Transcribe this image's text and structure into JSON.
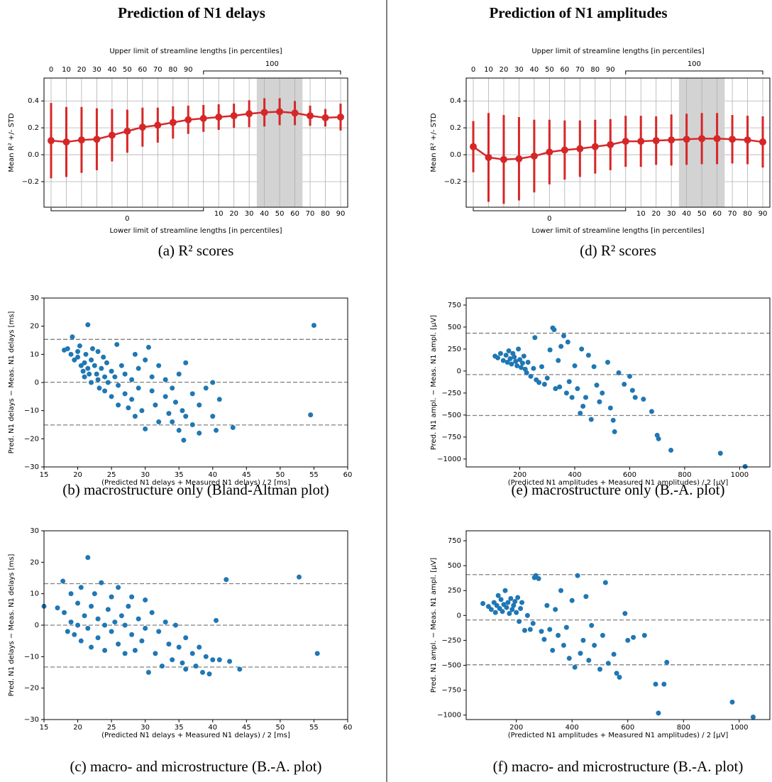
{
  "column_titles": [
    "Prediction of N1 delays",
    "Prediction of N1 amplitudes"
  ],
  "chart_data": [
    {
      "type": "errorbar",
      "caption": "(a) R² scores",
      "ylabel": "Mean R² +/- STD",
      "xlabel_top": "Upper limit of streamline lengths [in percentiles]",
      "xlabel_bottom": "Lower limit of streamline lengths [in percentiles]",
      "upper": [
        0,
        10,
        20,
        30,
        40,
        50,
        60,
        70,
        80,
        90,
        100,
        100,
        100,
        100,
        100,
        100,
        100,
        100,
        100,
        100
      ],
      "lower": [
        0,
        0,
        0,
        0,
        0,
        0,
        0,
        0,
        0,
        0,
        0,
        10,
        20,
        30,
        40,
        50,
        60,
        70,
        80,
        90
      ],
      "values": [
        0.105,
        0.095,
        0.11,
        0.115,
        0.145,
        0.175,
        0.205,
        0.22,
        0.24,
        0.26,
        0.27,
        0.28,
        0.29,
        0.305,
        0.315,
        0.32,
        0.31,
        0.29,
        0.275,
        0.28
      ],
      "errors": [
        0.28,
        0.26,
        0.245,
        0.23,
        0.195,
        0.16,
        0.145,
        0.13,
        0.12,
        0.105,
        0.1,
        0.095,
        0.09,
        0.1,
        0.105,
        0.1,
        0.09,
        0.075,
        0.065,
        0.1
      ],
      "shaded": [
        14,
        15,
        16
      ],
      "color": "#d62728",
      "grid": true,
      "ylim": [
        -0.39,
        0.57
      ],
      "yticks": [
        {
          "value": -0.2,
          "label": "−0.2"
        },
        {
          "value": 0,
          "label": "0.0"
        },
        0.2,
        0.4
      ]
    },
    {
      "type": "scatter",
      "caption": "(b) macrostructure only (Bland-Altman plot)",
      "ylabel": "Pred. N1 delays − Meas. N1 delays [ms]",
      "xlabel": "(Predicted N1 delays + Measured N1 delays) / 2 [ms]",
      "x": [
        18,
        18.5,
        19,
        19.2,
        19.5,
        20,
        20,
        20.3,
        20.5,
        20.8,
        21,
        21,
        21.2,
        21.5,
        21.5,
        21.7,
        22,
        22,
        22.2,
        22.5,
        22.8,
        23,
        23,
        23.2,
        23.5,
        23.8,
        24,
        24,
        24.3,
        24.5,
        25,
        25,
        25.5,
        25.8,
        26,
        26,
        26.5,
        27,
        27,
        27.5,
        28,
        28,
        28.5,
        28.5,
        29,
        29,
        29.5,
        30,
        30,
        30.5,
        31,
        31,
        31.5,
        32,
        32,
        33,
        33,
        33.5,
        34,
        34,
        34.5,
        35,
        35,
        35.5,
        35.7,
        36,
        36,
        37,
        37,
        38,
        38,
        39,
        40,
        40,
        40.5,
        41,
        43,
        54.5,
        55
      ],
      "values": [
        11.5,
        12,
        10,
        16.2,
        8,
        9,
        11,
        13,
        6,
        4,
        7,
        2,
        10,
        20.5,
        5,
        3,
        8,
        0,
        12,
        6,
        3,
        11,
        1,
        -2,
        5,
        9,
        2,
        -3,
        7,
        0,
        4,
        -5,
        2,
        13.5,
        -1,
        -8,
        6,
        3,
        -4,
        -9,
        1,
        -6,
        10,
        -12,
        -2,
        5,
        -10,
        -16.5,
        8,
        12.5,
        -3,
        2,
        -8,
        -14,
        6,
        -5,
        1,
        -11,
        -2,
        -14,
        -7,
        -17,
        3,
        -10,
        -20.5,
        -12,
        7,
        -4,
        -15,
        -8,
        -18,
        -2,
        0,
        -12,
        -17,
        -6,
        -16,
        -11.5,
        20.3
      ],
      "hlines": [
        15.3,
        0.1,
        -15.1
      ],
      "color": "#1f77b4",
      "xlim": [
        15,
        60
      ],
      "xticks": [
        15,
        20,
        25,
        30,
        35,
        40,
        45,
        50,
        55,
        60
      ],
      "ylim": [
        -30,
        30
      ],
      "yticks": [
        {
          "value": -30,
          "label": "−30"
        },
        {
          "value": -20,
          "label": "−20"
        },
        {
          "value": -10,
          "label": "−10"
        },
        0,
        10,
        20,
        30
      ]
    },
    {
      "type": "scatter",
      "caption": "(c) macro- and microstructure (B.-A. plot)",
      "ylabel": "Pred. N1 delays − Meas. N1 delays [ms]",
      "xlabel": "(Predicted N1 delays + Measured N1 delays) / 2 [ms]",
      "x": [
        15,
        17,
        17.8,
        18,
        18.5,
        19,
        19,
        19.5,
        20,
        20,
        20.5,
        20.5,
        21,
        21.5,
        21.5,
        22,
        22,
        22.5,
        23,
        23,
        23.5,
        24,
        24,
        24.5,
        25,
        25,
        25.5,
        26,
        26,
        26.5,
        27,
        27,
        27.5,
        28,
        28,
        28.5,
        29,
        29.5,
        30,
        30,
        30.5,
        31,
        31.5,
        32,
        32.5,
        33,
        33.5,
        34,
        34.5,
        35,
        35.5,
        36,
        36,
        37,
        37.5,
        38,
        38.5,
        39,
        39.5,
        40,
        40.5,
        41,
        42,
        42.5,
        44,
        52.8,
        55.5
      ],
      "values": [
        6,
        5.5,
        14,
        4,
        -2,
        10,
        1,
        -3,
        7,
        0,
        12,
        -5,
        3,
        21.5,
        -1,
        6,
        -7,
        10,
        2,
        -4,
        13.5,
        0,
        -8,
        5,
        -2,
        9,
        1,
        -6,
        12,
        3,
        -9,
        0,
        6,
        -3,
        9,
        -8,
        2,
        -5,
        8,
        -1,
        -15,
        4,
        -9,
        -2,
        -13,
        1,
        -6,
        -11,
        0,
        -7,
        -12,
        -4,
        -14,
        -9,
        -13,
        -7,
        -15,
        -10,
        -15.5,
        -11,
        1.5,
        -11,
        14.5,
        -11.5,
        -14,
        15.3,
        -9
      ],
      "hlines": [
        13.2,
        0,
        -13.3
      ],
      "color": "#1f77b4",
      "xlim": [
        15,
        60
      ],
      "xticks": [
        15,
        20,
        25,
        30,
        35,
        40,
        45,
        50,
        55,
        60
      ],
      "ylim": [
        -30,
        30
      ],
      "yticks": [
        {
          "value": -30,
          "label": "−30"
        },
        {
          "value": -20,
          "label": "−20"
        },
        {
          "value": -10,
          "label": "−10"
        },
        0,
        10,
        20,
        30
      ]
    },
    {
      "type": "errorbar",
      "caption": "(d) R² scores",
      "ylabel": "Mean R² +/- STD",
      "xlabel_top": "Upper limit of streamline lengths [in percentiles]",
      "xlabel_bottom": "Lower limit of streamline lengths [in percentiles]",
      "upper": [
        0,
        10,
        20,
        30,
        40,
        50,
        60,
        70,
        80,
        90,
        100,
        100,
        100,
        100,
        100,
        100,
        100,
        100,
        100,
        100
      ],
      "lower": [
        0,
        0,
        0,
        0,
        0,
        0,
        0,
        0,
        0,
        0,
        0,
        10,
        20,
        30,
        40,
        50,
        60,
        70,
        80,
        90
      ],
      "values": [
        0.06,
        -0.02,
        -0.035,
        -0.03,
        -0.01,
        0.02,
        0.035,
        0.045,
        0.06,
        0.075,
        0.1,
        0.1,
        0.105,
        0.11,
        0.115,
        0.12,
        0.12,
        0.115,
        0.11,
        0.095
      ],
      "errors": [
        0.19,
        0.33,
        0.33,
        0.31,
        0.27,
        0.24,
        0.22,
        0.21,
        0.2,
        0.19,
        0.19,
        0.19,
        0.18,
        0.19,
        0.19,
        0.19,
        0.19,
        0.18,
        0.18,
        0.19
      ],
      "shaded": [
        14,
        15,
        16
      ],
      "color": "#d62728",
      "grid": true,
      "ylim": [
        -0.39,
        0.57
      ],
      "yticks": [
        {
          "value": -0.2,
          "label": "−0.2"
        },
        {
          "value": 0,
          "label": "0.0"
        },
        0.2,
        0.4
      ]
    },
    {
      "type": "scatter",
      "caption": "(e) macrostructure only (B.-A. plot)",
      "ylabel": "Pred. N1 ampl. − Meas. N1 ampl. [μV]",
      "xlabel": "(Predicted N1 amplitudes + Measured N1 amplitudes) / 2 [μV]",
      "x": [
        110,
        120,
        130,
        140,
        150,
        155,
        160,
        165,
        170,
        175,
        180,
        185,
        190,
        195,
        200,
        205,
        210,
        215,
        220,
        225,
        230,
        240,
        250,
        255,
        260,
        270,
        280,
        290,
        300,
        310,
        320,
        325,
        330,
        340,
        345,
        350,
        360,
        370,
        375,
        380,
        390,
        400,
        410,
        420,
        425,
        430,
        440,
        450,
        460,
        470,
        480,
        490,
        500,
        520,
        530,
        540,
        545,
        560,
        580,
        600,
        610,
        620,
        650,
        680,
        700,
        705,
        750,
        930,
        1020
      ],
      "values": [
        170,
        150,
        200,
        120,
        180,
        100,
        230,
        140,
        80,
        200,
        160,
        110,
        60,
        250,
        130,
        40,
        90,
        170,
        20,
        -20,
        100,
        -60,
        30,
        380,
        -100,
        -130,
        50,
        -150,
        -80,
        240,
        490,
        470,
        -200,
        120,
        -180,
        280,
        400,
        -250,
        330,
        -120,
        -300,
        60,
        -200,
        -480,
        250,
        -400,
        -300,
        180,
        -550,
        50,
        -160,
        -350,
        -250,
        100,
        -420,
        -560,
        -690,
        -20,
        -150,
        -60,
        -220,
        -300,
        -320,
        -460,
        -730,
        -770,
        -900,
        -935,
        -1085
      ],
      "hlines": [
        430,
        -40,
        -505
      ],
      "color": "#1f77b4",
      "xlim": [
        5,
        1110
      ],
      "xticks": [
        200,
        400,
        600,
        800,
        1000
      ],
      "ylim": [
        -1090,
        830
      ],
      "yticks": [
        {
          "value": -1000,
          "label": "−1000"
        },
        {
          "value": -750,
          "label": "−750"
        },
        {
          "value": -500,
          "label": "−500"
        },
        {
          "value": -250,
          "label": "−250"
        },
        0,
        250,
        500,
        750
      ]
    },
    {
      "type": "scatter",
      "caption": "(f) macro- and microstructure (B.-A. plot)",
      "ylabel": "Pred. N1 ampl. − Meas. N1 ampl. [μV]",
      "xlabel": "(Predicted N1 amplitudes + Measured N1 amplitudes) / 2 [μV]",
      "x": [
        80,
        100,
        110,
        120,
        125,
        130,
        135,
        140,
        145,
        150,
        155,
        160,
        165,
        170,
        175,
        180,
        185,
        190,
        195,
        200,
        205,
        210,
        215,
        220,
        230,
        240,
        250,
        260,
        265,
        270,
        280,
        290,
        300,
        310,
        320,
        330,
        340,
        350,
        360,
        370,
        380,
        390,
        400,
        410,
        420,
        430,
        440,
        450,
        460,
        470,
        480,
        500,
        510,
        520,
        530,
        550,
        560,
        570,
        590,
        600,
        620,
        660,
        700,
        710,
        730,
        740,
        975,
        1050
      ],
      "values": [
        120,
        90,
        60,
        130,
        30,
        100,
        200,
        70,
        160,
        40,
        110,
        250,
        80,
        130,
        20,
        170,
        60,
        100,
        140,
        30,
        180,
        -60,
        70,
        130,
        -150,
        0,
        -140,
        -80,
        380,
        400,
        370,
        -160,
        -240,
        100,
        -140,
        -350,
        60,
        -200,
        250,
        -300,
        -120,
        -430,
        150,
        -520,
        400,
        -380,
        -250,
        190,
        -450,
        -100,
        -300,
        -540,
        -200,
        330,
        -480,
        -390,
        -580,
        -620,
        20,
        -250,
        -220,
        -200,
        -690,
        -980,
        -690,
        -470,
        -870,
        -1020
      ],
      "hlines": [
        410,
        -45,
        -495
      ],
      "color": "#1f77b4",
      "xlim": [
        20,
        1110
      ],
      "xticks": [
        200,
        400,
        600,
        800,
        1000
      ],
      "ylim": [
        -1045,
        850
      ],
      "yticks": [
        {
          "value": -1000,
          "label": "−1000"
        },
        {
          "value": -750,
          "label": "−750"
        },
        {
          "value": -500,
          "label": "−500"
        },
        {
          "value": -250,
          "label": "−250"
        },
        0,
        250,
        500,
        750
      ]
    }
  ]
}
